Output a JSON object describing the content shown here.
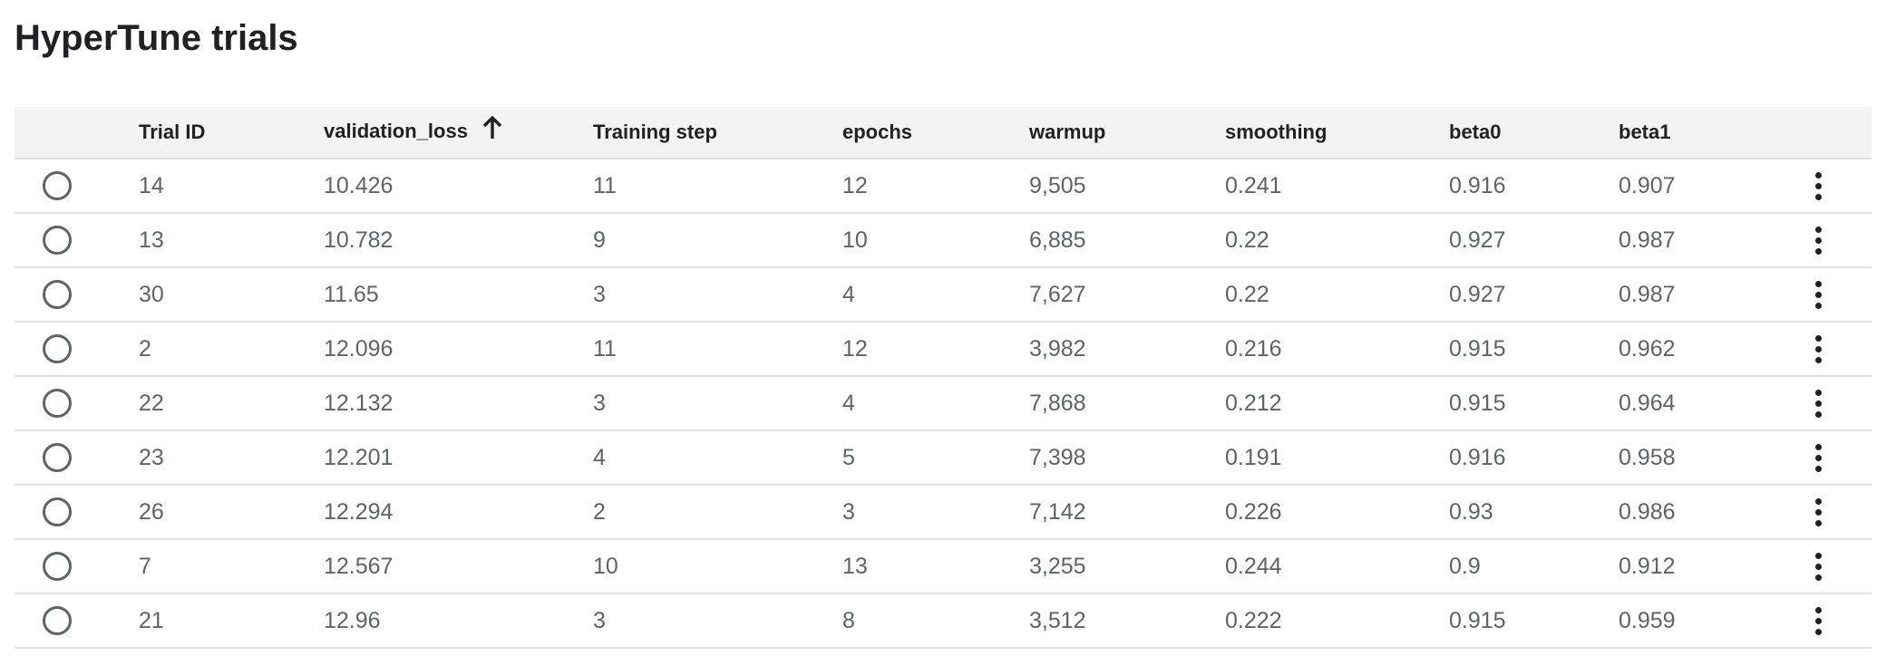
{
  "page": {
    "title": "HyperTune trials"
  },
  "table": {
    "columns": [
      {
        "key": "select",
        "label": ""
      },
      {
        "key": "trial_id",
        "label": "Trial ID"
      },
      {
        "key": "validation_loss",
        "label": "validation_loss",
        "sort": "ascending",
        "sort_icon": "arrow-up-icon"
      },
      {
        "key": "training_step",
        "label": "Training step"
      },
      {
        "key": "epochs",
        "label": "epochs"
      },
      {
        "key": "warmup",
        "label": "warmup"
      },
      {
        "key": "smoothing",
        "label": "smoothing"
      },
      {
        "key": "beta0",
        "label": "beta0"
      },
      {
        "key": "beta1",
        "label": "beta1"
      },
      {
        "key": "actions",
        "label": ""
      }
    ],
    "rows": [
      {
        "trial_id": "14",
        "validation_loss": "10.426",
        "training_step": "11",
        "epochs": "12",
        "warmup": "9,505",
        "smoothing": "0.241",
        "beta0": "0.916",
        "beta1": "0.907",
        "selected": false
      },
      {
        "trial_id": "13",
        "validation_loss": "10.782",
        "training_step": "9",
        "epochs": "10",
        "warmup": "6,885",
        "smoothing": "0.22",
        "beta0": "0.927",
        "beta1": "0.987",
        "selected": false
      },
      {
        "trial_id": "30",
        "validation_loss": "11.65",
        "training_step": "3",
        "epochs": "4",
        "warmup": "7,627",
        "smoothing": "0.22",
        "beta0": "0.927",
        "beta1": "0.987",
        "selected": false
      },
      {
        "trial_id": "2",
        "validation_loss": "12.096",
        "training_step": "11",
        "epochs": "12",
        "warmup": "3,982",
        "smoothing": "0.216",
        "beta0": "0.915",
        "beta1": "0.962",
        "selected": false
      },
      {
        "trial_id": "22",
        "validation_loss": "12.132",
        "training_step": "3",
        "epochs": "4",
        "warmup": "7,868",
        "smoothing": "0.212",
        "beta0": "0.915",
        "beta1": "0.964",
        "selected": false
      },
      {
        "trial_id": "23",
        "validation_loss": "12.201",
        "training_step": "4",
        "epochs": "5",
        "warmup": "7,398",
        "smoothing": "0.191",
        "beta0": "0.916",
        "beta1": "0.958",
        "selected": false
      },
      {
        "trial_id": "26",
        "validation_loss": "12.294",
        "training_step": "2",
        "epochs": "3",
        "warmup": "7,142",
        "smoothing": "0.226",
        "beta0": "0.93",
        "beta1": "0.986",
        "selected": false
      },
      {
        "trial_id": "7",
        "validation_loss": "12.567",
        "training_step": "10",
        "epochs": "13",
        "warmup": "3,255",
        "smoothing": "0.244",
        "beta0": "0.9",
        "beta1": "0.912",
        "selected": false
      },
      {
        "trial_id": "21",
        "validation_loss": "12.96",
        "training_step": "3",
        "epochs": "8",
        "warmup": "3,512",
        "smoothing": "0.222",
        "beta0": "0.915",
        "beta1": "0.959",
        "selected": false
      }
    ],
    "row_select_icon": "radio-button-icon",
    "row_menu_icon": "more-vert-icon"
  },
  "colors": {
    "header_bg": "#f3f3f3",
    "divider": "#e0e0e0",
    "text_primary": "#202124",
    "text_secondary": "#5f6368"
  }
}
